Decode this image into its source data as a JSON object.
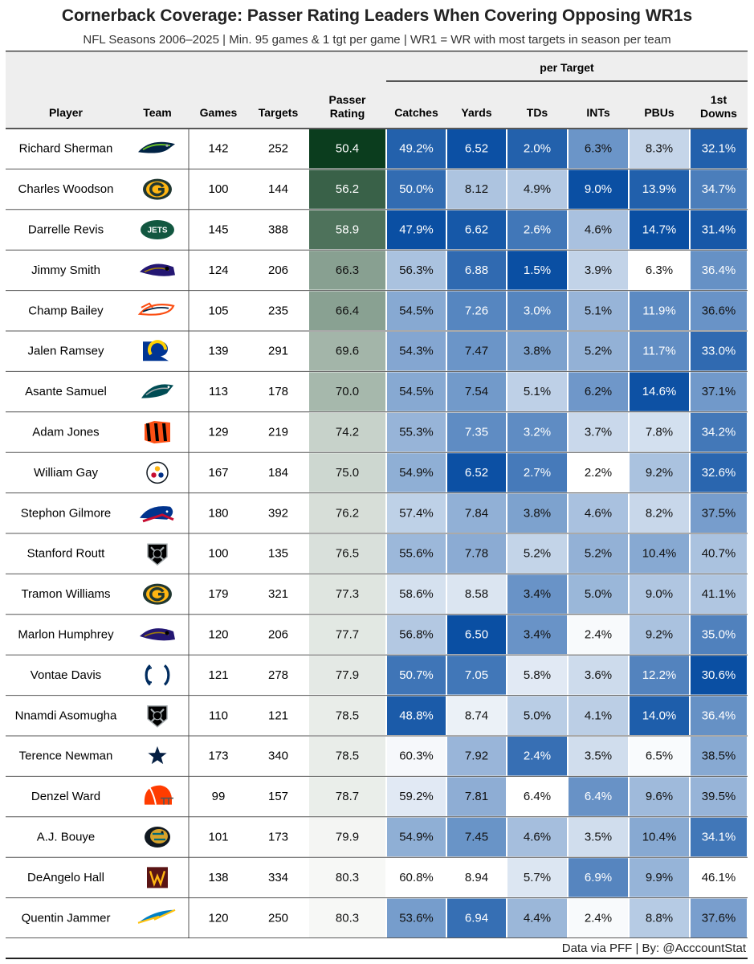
{
  "title": "Cornerback Coverage: Passer Rating Leaders When Covering Opposing WR1s",
  "subtitle": "NFL Seasons 2006–2025 | Min. 95 games & 1 tgt per game | WR1 = WR with most targets in season per team",
  "footer": "Data via PFF | By: @AcccountStat",
  "colors": {
    "rating_dark": "#0b3d1e",
    "rating_light": "#f7f8f6",
    "blue_dark": "#0a4fa3",
    "blue_light": "#ffffff",
    "header_bg": "#eeeeee",
    "border": "#222222"
  },
  "chart_data": {
    "type": "table",
    "group_header": "per Target",
    "columns": [
      {
        "key": "player",
        "label": "Player"
      },
      {
        "key": "team",
        "label": "Team"
      },
      {
        "key": "games",
        "label": "Games"
      },
      {
        "key": "targets",
        "label": "Targets"
      },
      {
        "key": "rating",
        "label": "Passer\nRating"
      },
      {
        "key": "catches",
        "label": "Catches"
      },
      {
        "key": "yards",
        "label": "Yards"
      },
      {
        "key": "tds",
        "label": "TDs"
      },
      {
        "key": "ints",
        "label": "INTs"
      },
      {
        "key": "pbus",
        "label": "PBUs"
      },
      {
        "key": "first_downs",
        "label": "1st\nDowns"
      }
    ],
    "rows": [
      {
        "player": "Richard Sherman",
        "team": "SEA",
        "team_icon": "seahawks-logo-icon",
        "games": "142",
        "targets": "252",
        "rating": "50.4",
        "catches": "49.2%",
        "yards": "6.52",
        "tds": "2.0%",
        "ints": "6.3%",
        "pbus": "8.3%",
        "first_downs": "32.1%"
      },
      {
        "player": "Charles Woodson",
        "team": "GB",
        "team_icon": "packers-logo-icon",
        "games": "100",
        "targets": "144",
        "rating": "56.2",
        "catches": "50.0%",
        "yards": "8.12",
        "tds": "4.9%",
        "ints": "9.0%",
        "pbus": "13.9%",
        "first_downs": "34.7%"
      },
      {
        "player": "Darrelle Revis",
        "team": "NYJ",
        "team_icon": "jets-logo-icon",
        "games": "145",
        "targets": "388",
        "rating": "58.9",
        "catches": "47.9%",
        "yards": "6.62",
        "tds": "2.6%",
        "ints": "4.6%",
        "pbus": "14.7%",
        "first_downs": "31.4%"
      },
      {
        "player": "Jimmy Smith",
        "team": "BAL",
        "team_icon": "ravens-logo-icon",
        "games": "124",
        "targets": "206",
        "rating": "66.3",
        "catches": "56.3%",
        "yards": "6.88",
        "tds": "1.5%",
        "ints": "3.9%",
        "pbus": "6.3%",
        "first_downs": "36.4%"
      },
      {
        "player": "Champ Bailey",
        "team": "DEN",
        "team_icon": "broncos-logo-icon",
        "games": "105",
        "targets": "235",
        "rating": "66.4",
        "catches": "54.5%",
        "yards": "7.26",
        "tds": "3.0%",
        "ints": "5.1%",
        "pbus": "11.9%",
        "first_downs": "36.6%"
      },
      {
        "player": "Jalen Ramsey",
        "team": "LAR",
        "team_icon": "rams-logo-icon",
        "games": "139",
        "targets": "291",
        "rating": "69.6",
        "catches": "54.3%",
        "yards": "7.47",
        "tds": "3.8%",
        "ints": "5.2%",
        "pbus": "11.7%",
        "first_downs": "33.0%"
      },
      {
        "player": "Asante Samuel",
        "team": "PHI",
        "team_icon": "eagles-logo-icon",
        "games": "113",
        "targets": "178",
        "rating": "70.0",
        "catches": "54.5%",
        "yards": "7.54",
        "tds": "5.1%",
        "ints": "6.2%",
        "pbus": "14.6%",
        "first_downs": "37.1%"
      },
      {
        "player": "Adam Jones",
        "team": "CIN",
        "team_icon": "bengals-logo-icon",
        "games": "129",
        "targets": "219",
        "rating": "74.2",
        "catches": "55.3%",
        "yards": "7.35",
        "tds": "3.2%",
        "ints": "3.7%",
        "pbus": "7.8%",
        "first_downs": "34.2%"
      },
      {
        "player": "William Gay",
        "team": "PIT",
        "team_icon": "steelers-logo-icon",
        "games": "167",
        "targets": "184",
        "rating": "75.0",
        "catches": "54.9%",
        "yards": "6.52",
        "tds": "2.7%",
        "ints": "2.2%",
        "pbus": "9.2%",
        "first_downs": "32.6%"
      },
      {
        "player": "Stephon Gilmore",
        "team": "BUF",
        "team_icon": "bills-logo-icon",
        "games": "180",
        "targets": "392",
        "rating": "76.2",
        "catches": "57.4%",
        "yards": "7.84",
        "tds": "3.8%",
        "ints": "4.6%",
        "pbus": "8.2%",
        "first_downs": "37.5%"
      },
      {
        "player": "Stanford Routt",
        "team": "LV",
        "team_icon": "raiders-logo-icon",
        "games": "100",
        "targets": "135",
        "rating": "76.5",
        "catches": "55.6%",
        "yards": "7.78",
        "tds": "5.2%",
        "ints": "5.2%",
        "pbus": "10.4%",
        "first_downs": "40.7%"
      },
      {
        "player": "Tramon Williams",
        "team": "GB",
        "team_icon": "packers-logo-icon",
        "games": "179",
        "targets": "321",
        "rating": "77.3",
        "catches": "58.6%",
        "yards": "8.58",
        "tds": "3.4%",
        "ints": "5.0%",
        "pbus": "9.0%",
        "first_downs": "41.1%"
      },
      {
        "player": "Marlon Humphrey",
        "team": "BAL",
        "team_icon": "ravens-logo-icon",
        "games": "120",
        "targets": "206",
        "rating": "77.7",
        "catches": "56.8%",
        "yards": "6.50",
        "tds": "3.4%",
        "ints": "2.4%",
        "pbus": "9.2%",
        "first_downs": "35.0%"
      },
      {
        "player": "Vontae Davis",
        "team": "IND",
        "team_icon": "colts-logo-icon",
        "games": "121",
        "targets": "278",
        "rating": "77.9",
        "catches": "50.7%",
        "yards": "7.05",
        "tds": "5.8%",
        "ints": "3.6%",
        "pbus": "12.2%",
        "first_downs": "30.6%"
      },
      {
        "player": "Nnamdi Asomugha",
        "team": "LV",
        "team_icon": "raiders-logo-icon",
        "games": "110",
        "targets": "121",
        "rating": "78.5",
        "catches": "48.8%",
        "yards": "8.74",
        "tds": "5.0%",
        "ints": "4.1%",
        "pbus": "14.0%",
        "first_downs": "36.4%"
      },
      {
        "player": "Terence Newman",
        "team": "DAL",
        "team_icon": "cowboys-logo-icon",
        "games": "173",
        "targets": "340",
        "rating": "78.5",
        "catches": "60.3%",
        "yards": "7.92",
        "tds": "2.4%",
        "ints": "3.5%",
        "pbus": "6.5%",
        "first_downs": "38.5%"
      },
      {
        "player": "Denzel Ward",
        "team": "CLE",
        "team_icon": "browns-logo-icon",
        "games": "99",
        "targets": "157",
        "rating": "78.7",
        "catches": "59.2%",
        "yards": "7.81",
        "tds": "6.4%",
        "ints": "6.4%",
        "pbus": "9.6%",
        "first_downs": "39.5%"
      },
      {
        "player": "A.J. Bouye",
        "team": "JAX",
        "team_icon": "jaguars-logo-icon",
        "games": "101",
        "targets": "173",
        "rating": "79.9",
        "catches": "54.9%",
        "yards": "7.45",
        "tds": "4.6%",
        "ints": "3.5%",
        "pbus": "10.4%",
        "first_downs": "34.1%"
      },
      {
        "player": "DeAngelo Hall",
        "team": "WAS",
        "team_icon": "commanders-logo-icon",
        "games": "138",
        "targets": "334",
        "rating": "80.3",
        "catches": "60.8%",
        "yards": "8.94",
        "tds": "5.7%",
        "ints": "6.9%",
        "pbus": "9.9%",
        "first_downs": "46.1%"
      },
      {
        "player": "Quentin Jammer",
        "team": "LAC",
        "team_icon": "chargers-logo-icon",
        "games": "120",
        "targets": "250",
        "rating": "80.3",
        "catches": "53.6%",
        "yards": "6.94",
        "tds": "4.4%",
        "ints": "2.4%",
        "pbus": "8.8%",
        "first_downs": "37.6%"
      }
    ]
  }
}
